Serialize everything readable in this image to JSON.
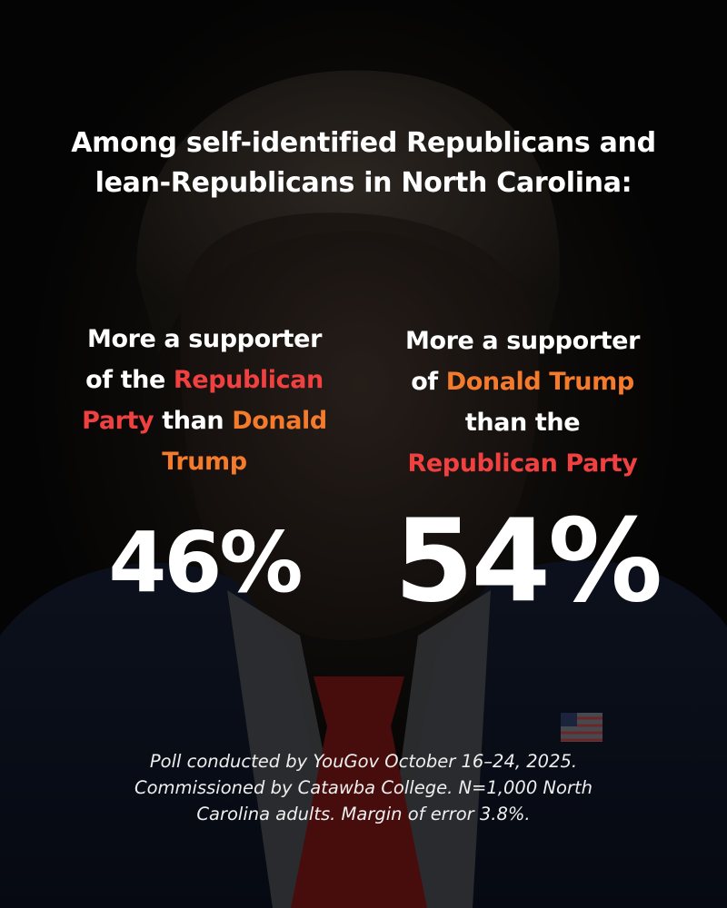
{
  "headline": {
    "line1": "Among self-identified Republicans and",
    "line2": "lean-Republicans in North Carolina:"
  },
  "left_column": {
    "l1": "More a supporter",
    "l2a": "of the ",
    "l2b": "Republican",
    "l3a": "Party",
    "l3b": " than ",
    "l3c": "Donald",
    "l4": "Trump",
    "value": "46%"
  },
  "right_column": {
    "l1": "More a supporter",
    "l2a": "of ",
    "l2b": "Donald Trump",
    "l3": "than the",
    "l4": "Republican Party",
    "value": "54%"
  },
  "footnote": {
    "line1": "Poll conducted by YouGov October 16–24, 2025.",
    "line2": "Commissioned by Catawba College. N=1,000 North",
    "line3": "Carolina adults. Margin of error 3.8%."
  },
  "colors": {
    "republican_red": "#f04040",
    "trump_orange": "#f47a2c",
    "text_white": "#ffffff"
  }
}
